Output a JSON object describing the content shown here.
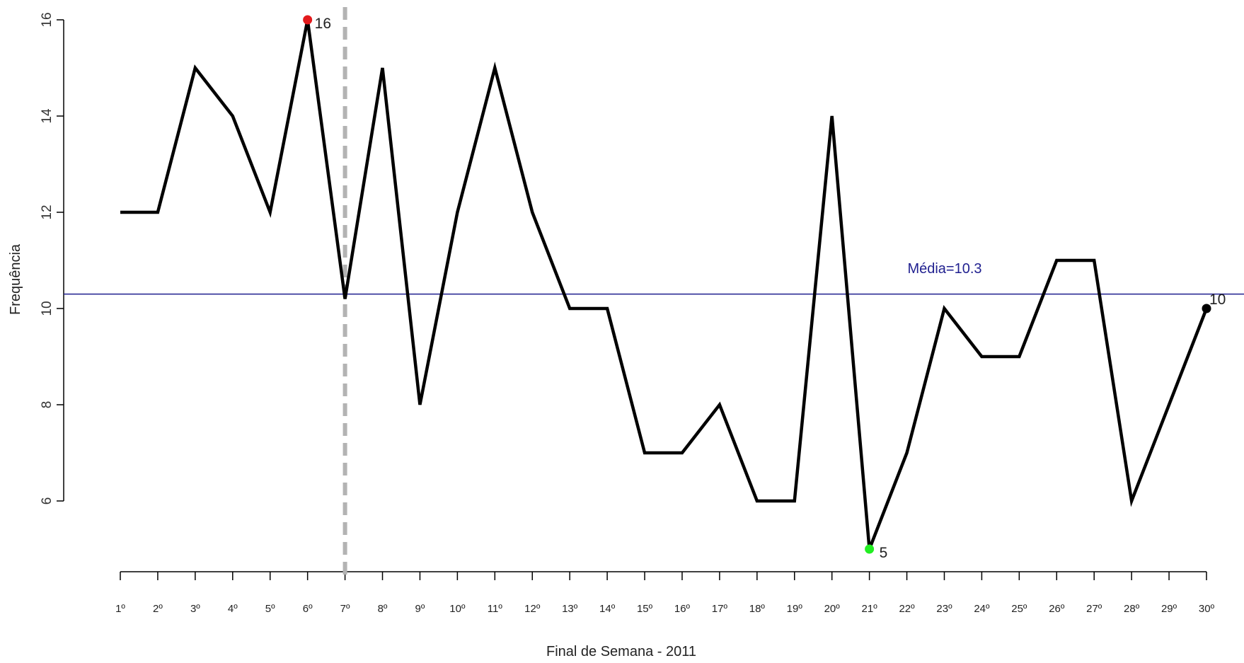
{
  "chart_data": {
    "type": "line",
    "title": "",
    "xlabel": "Final de Semana  - 2011",
    "ylabel": "Frequência",
    "categories": [
      "1º",
      "2º",
      "3º",
      "4º",
      "5º",
      "6º",
      "7º",
      "8º",
      "9º",
      "10º",
      "11º",
      "12º",
      "13º",
      "14º",
      "15º",
      "16º",
      "17º",
      "18º",
      "19º",
      "20º",
      "21º",
      "22º",
      "23º",
      "24º",
      "25º",
      "26º",
      "27º",
      "28º",
      "29º",
      "30º"
    ],
    "x": [
      1,
      2,
      3,
      4,
      5,
      6,
      7,
      8,
      9,
      10,
      11,
      12,
      13,
      14,
      15,
      16,
      17,
      18,
      19,
      20,
      21,
      22,
      23,
      24,
      25,
      26,
      27,
      28,
      29,
      30
    ],
    "series": [
      {
        "values": [
          12,
          12,
          15,
          14,
          12,
          16,
          10.2,
          15,
          8,
          12,
          15,
          12,
          10,
          10,
          7,
          7,
          8,
          6,
          6,
          14,
          5,
          7,
          10,
          9,
          9,
          11,
          11,
          6,
          8,
          10
        ]
      }
    ],
    "yticks": [
      6,
      8,
      10,
      12,
      14,
      16
    ],
    "ylim": [
      4.6,
      16.2
    ],
    "xlim": [
      1,
      30
    ],
    "grid": false,
    "line_color": "#000000",
    "mean": {
      "value": 10.3,
      "label": "Média=10.3",
      "color": "#1f1f8f"
    },
    "vertical_marker": {
      "x": 7,
      "style": "dashed",
      "color": "#b3b3b3"
    },
    "highlights": [
      {
        "x": 6,
        "y": 16,
        "label": "16",
        "color": "#e31a1c"
      },
      {
        "x": 21,
        "y": 5,
        "label": "5",
        "color": "#22ee22"
      },
      {
        "x": 30,
        "y": 10,
        "label": "10",
        "color": "#000000"
      }
    ]
  }
}
